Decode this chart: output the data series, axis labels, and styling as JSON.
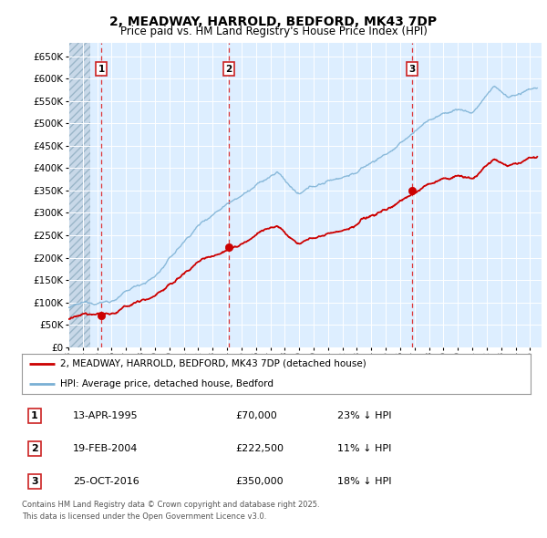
{
  "title": "2, MEADWAY, HARROLD, BEDFORD, MK43 7DP",
  "subtitle": "Price paid vs. HM Land Registry's House Price Index (HPI)",
  "background_color": "#ffffff",
  "plot_bg_color": "#ddeeff",
  "grid_color": "#ffffff",
  "red_line_color": "#cc0000",
  "blue_line_color": "#7ab0d4",
  "ylim": [
    0,
    680000
  ],
  "yticks": [
    0,
    50000,
    100000,
    150000,
    200000,
    250000,
    300000,
    350000,
    400000,
    450000,
    500000,
    550000,
    600000,
    650000
  ],
  "ytick_labels": [
    "£0",
    "£50K",
    "£100K",
    "£150K",
    "£200K",
    "£250K",
    "£300K",
    "£350K",
    "£400K",
    "£450K",
    "£500K",
    "£550K",
    "£600K",
    "£650K"
  ],
  "transactions": [
    {
      "num": 1,
      "date": "13-APR-1995",
      "year": 1995.28,
      "price": 70000,
      "label": "23% ↓ HPI"
    },
    {
      "num": 2,
      "date": "19-FEB-2004",
      "year": 2004.12,
      "price": 222500,
      "label": "11% ↓ HPI"
    },
    {
      "num": 3,
      "date": "25-OCT-2016",
      "year": 2016.81,
      "price": 350000,
      "label": "18% ↓ HPI"
    }
  ],
  "legend_entry1": "2, MEADWAY, HARROLD, BEDFORD, MK43 7DP (detached house)",
  "legend_entry2": "HPI: Average price, detached house, Bedford",
  "footer1": "Contains HM Land Registry data © Crown copyright and database right 2025.",
  "footer2": "This data is licensed under the Open Government Licence v3.0."
}
